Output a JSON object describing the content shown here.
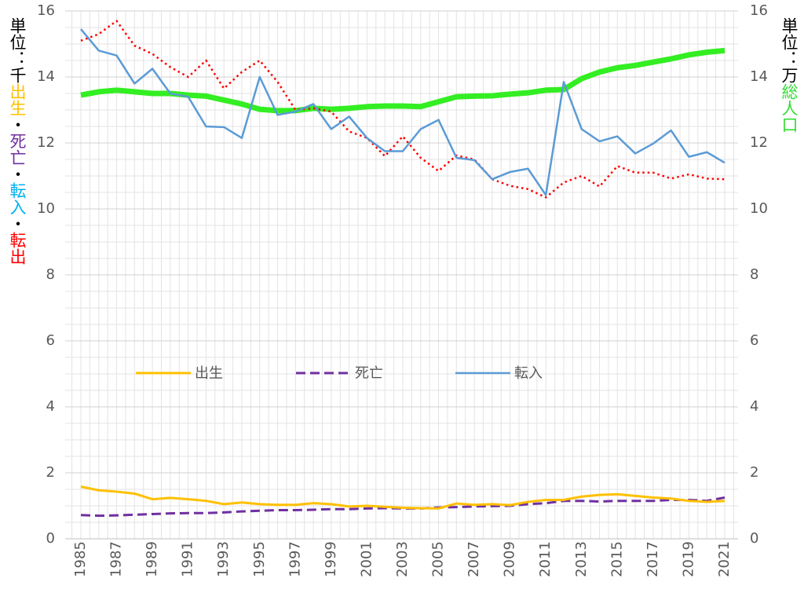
{
  "chart_data": {
    "type": "line",
    "categories": [
      "1985",
      null,
      "1987",
      null,
      "1989",
      null,
      "1991",
      null,
      "1993",
      null,
      "1995",
      null,
      "1997",
      null,
      "1999",
      null,
      "2001",
      null,
      "2003",
      null,
      "2005",
      null,
      "2007",
      null,
      "2009",
      null,
      "2011",
      null,
      "2013",
      null,
      "2015",
      null,
      "2017",
      null,
      "2019",
      null,
      "2021"
    ],
    "y_label": [
      {
        "text": "単位：千",
        "color": "#000000"
      },
      {
        "text": "出生",
        "color": "#ffc000"
      },
      {
        "text": "・",
        "color": "#000000"
      },
      {
        "text": "死亡",
        "color": "#7030a0"
      },
      {
        "text": "・",
        "color": "#000000"
      },
      {
        "text": "転入",
        "color": "#00b0f0"
      },
      {
        "text": "・",
        "color": "#000000"
      },
      {
        "text": "転出",
        "color": "#ff0000"
      }
    ],
    "y2_label": [
      {
        "text": "単位：万",
        "color": "#000000"
      },
      {
        "text": "総人口",
        "color": "#33dd33"
      }
    ],
    "ylim": [
      0,
      16
    ],
    "yticks": [
      0,
      2,
      4,
      6,
      8,
      10,
      12,
      14,
      16
    ],
    "y2lim": [
      0,
      16
    ],
    "y2ticks": [
      0,
      2,
      4,
      6,
      8,
      10,
      12,
      14,
      16
    ],
    "grid": true,
    "series": [
      {
        "name": "出生",
        "color": "#ffc000",
        "width": 3,
        "dash": "solid",
        "legend": true,
        "values": [
          1.58,
          1.47,
          1.43,
          1.37,
          1.2,
          1.24,
          1.2,
          1.15,
          1.05,
          1.1,
          1.05,
          1.03,
          1.03,
          1.08,
          1.05,
          0.98,
          1.0,
          0.97,
          0.94,
          0.93,
          0.92,
          1.07,
          1.03,
          1.05,
          1.02,
          1.12,
          1.18,
          1.18,
          1.28,
          1.33,
          1.35,
          1.3,
          1.25,
          1.22,
          1.15,
          1.12,
          1.15
        ]
      },
      {
        "name": "死亡",
        "color": "#7030a0",
        "width": 3,
        "dash": "dashed",
        "legend": true,
        "values": [
          0.72,
          0.7,
          0.71,
          0.73,
          0.75,
          0.77,
          0.78,
          0.78,
          0.8,
          0.83,
          0.85,
          0.87,
          0.87,
          0.88,
          0.9,
          0.9,
          0.92,
          0.93,
          0.92,
          0.92,
          0.95,
          0.96,
          0.98,
          0.99,
          1.0,
          1.05,
          1.08,
          1.15,
          1.15,
          1.13,
          1.15,
          1.15,
          1.15,
          1.18,
          1.18,
          1.15,
          1.25
        ]
      },
      {
        "name": "転入",
        "color": "#5b9bd5",
        "width": 2.5,
        "dash": "solid",
        "legend": true,
        "values": [
          15.45,
          14.8,
          14.65,
          13.8,
          14.25,
          13.5,
          13.4,
          12.5,
          12.48,
          12.15,
          14.0,
          12.85,
          12.95,
          13.18,
          12.42,
          12.8,
          12.15,
          11.75,
          11.75,
          12.42,
          12.7,
          11.55,
          11.48,
          10.9,
          11.12,
          11.22,
          10.42,
          13.85,
          12.42,
          12.05,
          12.2,
          11.68,
          11.98,
          12.38,
          11.58,
          11.72,
          11.4
        ]
      },
      {
        "name": "転出",
        "color": "#ff0000",
        "width": 2.5,
        "dash": "dotted",
        "legend": false,
        "values": [
          15.1,
          15.3,
          15.7,
          14.95,
          14.7,
          14.3,
          14.0,
          14.5,
          13.65,
          14.15,
          14.5,
          13.85,
          13.0,
          13.05,
          12.95,
          12.35,
          12.15,
          11.6,
          12.2,
          11.55,
          11.15,
          11.62,
          11.5,
          10.9,
          10.7,
          10.6,
          10.35,
          10.8,
          11.0,
          10.68,
          11.3,
          11.1,
          11.1,
          10.92,
          11.05,
          10.92,
          10.9
        ]
      },
      {
        "name": "総人口",
        "color": "#33ee22",
        "width": 7,
        "dash": "solid",
        "legend": false,
        "axis": "y2",
        "values": [
          13.45,
          13.55,
          13.6,
          13.55,
          13.5,
          13.5,
          13.45,
          13.42,
          13.3,
          13.18,
          13.02,
          12.98,
          12.98,
          13.05,
          13.02,
          13.05,
          13.1,
          13.12,
          13.12,
          13.1,
          13.25,
          13.4,
          13.42,
          13.43,
          13.48,
          13.52,
          13.6,
          13.62,
          13.95,
          14.15,
          14.28,
          14.35,
          14.45,
          14.55,
          14.67,
          14.75,
          14.8
        ]
      }
    ]
  }
}
